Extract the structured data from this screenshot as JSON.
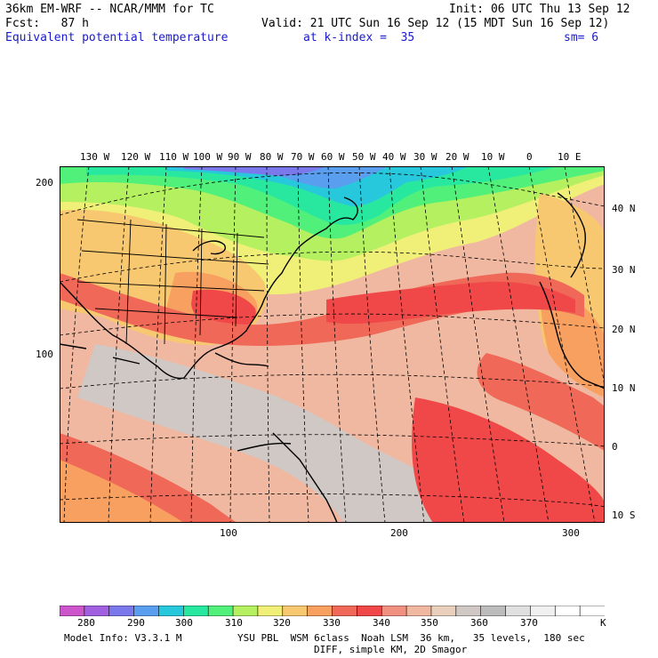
{
  "header": {
    "model": "36km EM-WRF -- NCAR/MMM for TC",
    "init": "Init: 06 UTC Thu 13 Sep 12",
    "fcst": "Fcst:   87 h",
    "valid": "Valid: 21 UTC Sun 16 Sep 12 (15 MDT Sun 16 Sep 12)",
    "field": "Equivalent potential temperature",
    "kindex": "at k-index =  35",
    "sm": "sm= 6"
  },
  "map": {
    "top_lon_labels": [
      "130 W",
      "120 W",
      "110 W",
      "100 W",
      "90 W",
      "80 W",
      "70 W",
      "60 W",
      "50 W",
      "40 W",
      "30 W",
      "20 W",
      "10 W",
      "0",
      "10 E"
    ],
    "right_lat_labels": [
      "40 N",
      "30 N",
      "20 N",
      "10 N",
      "0",
      "10 S"
    ],
    "left_y_labels": [
      "200",
      "100"
    ],
    "bottom_x_labels": [
      "100",
      "200",
      "300"
    ]
  },
  "colorbar": {
    "colors": [
      "#cc55cc",
      "#a060e0",
      "#7a78ea",
      "#5a9ef0",
      "#28c8dc",
      "#28e8a0",
      "#50f07a",
      "#b4f060",
      "#f0f078",
      "#f8c870",
      "#f8a060",
      "#f06858",
      "#f04848",
      "#f09080",
      "#f0b8a0",
      "#e8d0bc",
      "#d0c8c4",
      "#bcbcbc",
      "#e0e0e0",
      "#f0f0f0",
      "#ffffff",
      "#ffffff"
    ],
    "labels": [
      "280",
      "290",
      "300",
      "310",
      "320",
      "330",
      "340",
      "350",
      "360",
      "370"
    ],
    "unit": "K"
  },
  "footer": {
    "model_info": "Model Info: V3.3.1 M",
    "physics": "YSU PBL  WSM 6class  Noah LSM  36 km,   35 levels,  180 sec",
    "diff": "DIFF, simple KM, 2D Smagor"
  }
}
